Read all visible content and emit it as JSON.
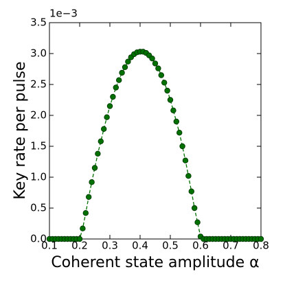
{
  "chart_data": {
    "type": "line",
    "xlabel": "Coherent state amplitude α",
    "ylabel": "Key rate per pulse",
    "y_offset_label": "1e−3",
    "x": [
      0.1,
      0.11,
      0.12,
      0.13,
      0.14,
      0.15,
      0.16,
      0.17,
      0.18,
      0.19,
      0.2,
      0.21,
      0.22,
      0.23,
      0.24,
      0.25,
      0.26,
      0.27,
      0.28,
      0.29,
      0.3,
      0.31,
      0.32,
      0.33,
      0.34,
      0.35,
      0.36,
      0.37,
      0.38,
      0.39,
      0.4,
      0.41,
      0.42,
      0.43,
      0.44,
      0.45,
      0.46,
      0.47,
      0.48,
      0.49,
      0.5,
      0.51,
      0.52,
      0.53,
      0.54,
      0.55,
      0.56,
      0.57,
      0.58,
      0.59,
      0.6,
      0.61,
      0.62,
      0.63,
      0.64,
      0.65,
      0.66,
      0.67,
      0.68,
      0.69,
      0.7,
      0.71,
      0.72,
      0.73,
      0.74,
      0.75,
      0.76,
      0.77,
      0.78,
      0.79,
      0.8
    ],
    "series": [
      {
        "color": "#007000",
        "values": [
          0,
          0,
          0,
          0,
          0,
          0,
          0,
          0,
          0,
          0,
          0,
          0.17,
          0.42,
          0.68,
          0.92,
          1.15,
          1.38,
          1.58,
          1.78,
          1.97,
          2.15,
          2.3,
          2.45,
          2.57,
          2.69,
          2.78,
          2.87,
          2.94,
          2.99,
          3.02,
          3.03,
          3.03,
          3.01,
          2.97,
          2.92,
          2.84,
          2.76,
          2.65,
          2.53,
          2.4,
          2.25,
          2.08,
          1.9,
          1.72,
          1.5,
          1.27,
          1.02,
          0.77,
          0.5,
          0.27,
          0.04,
          0,
          0,
          0,
          0,
          0,
          0,
          0,
          0,
          0,
          0,
          0,
          0,
          0,
          0,
          0,
          0,
          0,
          0,
          0,
          0
        ]
      }
    ],
    "xlim": [
      0.1,
      0.8
    ],
    "xticks": [
      0.1,
      0.2,
      0.3,
      0.4,
      0.5,
      0.6,
      0.7,
      0.8
    ],
    "ylim": [
      0,
      3.5
    ],
    "yticks": [
      {
        "value": 0,
        "label": "0.0"
      },
      0.5,
      {
        "value": 1,
        "label": "1.0"
      },
      1.5,
      {
        "value": 2,
        "label": "2.0"
      },
      2.5,
      {
        "value": 3,
        "label": "3.0"
      },
      3.5
    ]
  }
}
